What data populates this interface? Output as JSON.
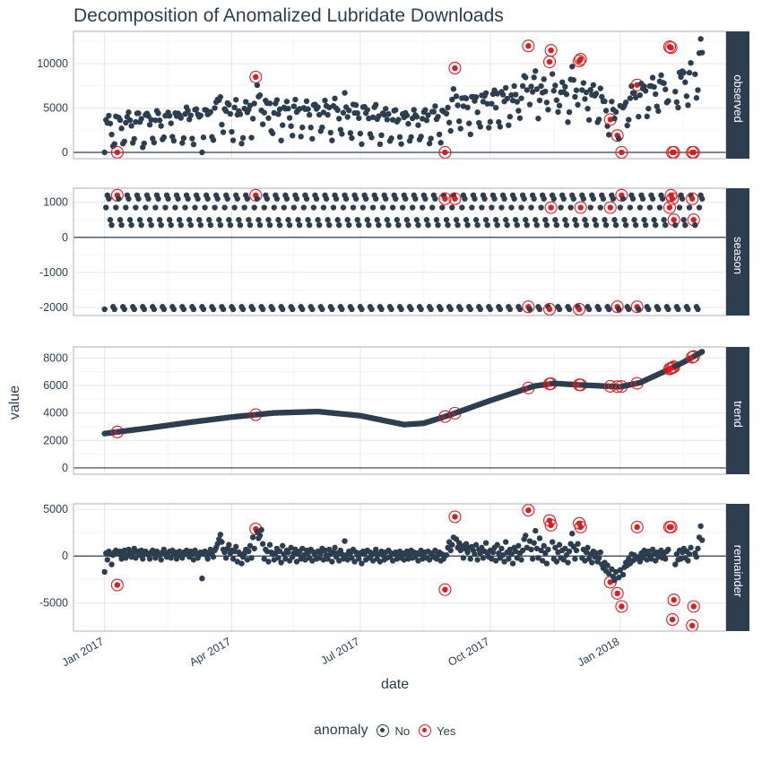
{
  "chart_data": {
    "type": "scatter",
    "title": "Decomposition of Anomalized Lubridate Downloads",
    "xlabel": "date",
    "ylabel": "value",
    "xlim": [
      "2016-12-10",
      "2018-03-17"
    ],
    "xticks": [
      {
        "date": "2017-01-01",
        "label": "Jan 2017"
      },
      {
        "date": "2017-04-01",
        "label": "Apr 2017"
      },
      {
        "date": "2017-07-01",
        "label": "Jul 2017"
      },
      {
        "date": "2017-10-01",
        "label": "Oct 2017"
      },
      {
        "date": "2018-01-01",
        "label": "Jan 2018"
      }
    ],
    "grid": true,
    "legend": {
      "title": "anomaly",
      "position": "bottom",
      "entries": [
        {
          "label": "No",
          "color": "#2c3e50"
        },
        {
          "label": "Yes",
          "color": "#e31a1c"
        }
      ]
    },
    "colors": {
      "normal": "#2c3e50",
      "anomaly": "#e31a1c",
      "strip": "#2c3e50"
    },
    "panels": [
      {
        "name": "observed",
        "ylim": [
          -710,
          13640
        ],
        "yticks": [
          0,
          5000,
          10000
        ]
      },
      {
        "name": "season",
        "ylim": [
          -2230,
          1400
        ],
        "yticks": [
          -2000,
          -1000,
          0,
          1000
        ]
      },
      {
        "name": "trend",
        "ylim": [
          -460,
          8800
        ],
        "yticks": [
          0,
          2000,
          4000,
          6000,
          8000
        ]
      },
      {
        "name": "remainder",
        "ylim": [
          -8040,
          5590
        ],
        "yticks": [
          -5000,
          0,
          5000
        ]
      }
    ],
    "season_by_weekday": {
      "Sun": -2050,
      "Mon": 850,
      "Tue": 1200,
      "Wed": 1100,
      "Thu": 500,
      "Fri": 350,
      "Sat": -1980
    },
    "trend_knots": [
      [
        "2017-01-01",
        2500
      ],
      [
        "2017-02-01",
        2900
      ],
      [
        "2017-03-01",
        3300
      ],
      [
        "2017-04-01",
        3700
      ],
      [
        "2017-05-01",
        4000
      ],
      [
        "2017-06-01",
        4100
      ],
      [
        "2017-07-01",
        3800
      ],
      [
        "2017-08-01",
        3150
      ],
      [
        "2017-08-15",
        3250
      ],
      [
        "2017-09-01",
        3800
      ],
      [
        "2017-10-01",
        4900
      ],
      [
        "2017-11-01",
        5950
      ],
      [
        "2017-11-15",
        6150
      ],
      [
        "2017-12-01",
        6050
      ],
      [
        "2018-01-01",
        5900
      ],
      [
        "2018-01-15",
        6200
      ],
      [
        "2018-02-01",
        7000
      ],
      [
        "2018-02-15",
        7700
      ],
      [
        "2018-02-28",
        8450
      ]
    ],
    "remainder_daily": {
      "2017-01": [
        -1700,
        300,
        -400,
        500,
        200,
        -900,
        100,
        400,
        600,
        -3100,
        200,
        500,
        -300,
        300,
        600,
        -200,
        100,
        700,
        400,
        -100,
        300,
        800,
        -200,
        400,
        500,
        100,
        600,
        -300,
        200,
        500,
        300
      ],
      "2017-02": [
        100,
        -300,
        400,
        600,
        200,
        -200,
        500,
        300,
        100,
        -400,
        400,
        700,
        200,
        -100,
        300,
        500,
        -200,
        600,
        200,
        400,
        -300,
        100,
        500,
        300,
        -200,
        400,
        200,
        600
      ],
      "2017-03": [
        300,
        -100,
        500,
        200,
        -400,
        600,
        300,
        -200,
        100,
        400,
        -2400,
        300,
        500,
        100,
        -300,
        400,
        700,
        200,
        -100,
        600,
        900,
        1300,
        1800,
        2300,
        1500,
        700,
        400,
        -200,
        800,
        1200,
        300
      ],
      "2017-04": [
        600,
        -300,
        500,
        1000,
        -600,
        400,
        200,
        -800,
        -100,
        300,
        700,
        -400,
        500,
        1100,
        -200,
        2000,
        800,
        2900,
        2600,
        1900,
        2200,
        2800,
        1300,
        -300,
        700,
        500,
        -600,
        1200,
        400,
        200
      ],
      "2017-05": [
        -400,
        300,
        800,
        -200,
        500,
        -700,
        1100,
        200,
        -300,
        600,
        400,
        -500,
        900,
        -100,
        300,
        700,
        -600,
        200,
        500,
        -300,
        800,
        100,
        -400,
        600,
        300,
        -200,
        700,
        -500,
        400,
        100,
        -300
      ],
      "2017-06": [
        500,
        -200,
        300,
        800,
        -400,
        600,
        100,
        -300,
        700,
        200,
        -600,
        400,
        900,
        -100,
        300,
        -500,
        600,
        200,
        -300,
        1600,
        100,
        -400,
        500,
        300,
        -200,
        700,
        -600,
        400,
        100,
        -300
      ],
      "2017-07": [
        300,
        -800,
        500,
        200,
        -400,
        600,
        -200,
        400,
        100,
        -500,
        300,
        700,
        -300,
        200,
        -600,
        500,
        100,
        -400,
        400,
        -200,
        600,
        -100,
        300,
        -500,
        200,
        400,
        -300,
        100,
        500,
        -200,
        300
      ],
      "2017-08": [
        -400,
        200,
        500,
        -300,
        100,
        600,
        -200,
        400,
        -100,
        300,
        -500,
        200,
        600,
        -300,
        100,
        400,
        -200,
        500,
        -400,
        200,
        300,
        -100,
        600,
        -300,
        100,
        400,
        -500,
        200,
        -300,
        -3600,
        100
      ],
      "2017-09": [
        900,
        1500,
        600,
        1200,
        2000,
        4200,
        1800,
        900,
        1400,
        600,
        1100,
        -200,
        800,
        1300,
        400,
        900,
        -300,
        1000,
        600,
        200,
        1200,
        -400,
        700,
        300,
        900,
        -200,
        500,
        1400,
        300,
        -100
      ],
      "2017-10": [
        600,
        -300,
        400,
        900,
        -500,
        1200,
        300,
        -200,
        800,
        100,
        -600,
        1500,
        400,
        -300,
        700,
        200,
        -800,
        900,
        500,
        -200,
        1100,
        300,
        -400,
        600,
        1800,
        2200,
        900,
        4900,
        1600,
        700,
        -300
      ],
      "2017-11": [
        1400,
        2700,
        800,
        -200,
        1900,
        600,
        -500,
        1100,
        300,
        -800,
        700,
        3800,
        3300,
        1500,
        -300,
        900,
        -600,
        400,
        1200,
        -200,
        600,
        -400,
        800,
        100,
        -700,
        500,
        1300,
        2400,
        1000,
        -300
      ],
      "2017-12": [
        600,
        1300,
        3500,
        3100,
        -200,
        700,
        -500,
        400,
        900,
        -300,
        200,
        -700,
        500,
        -100,
        300,
        -600,
        -200,
        400,
        -900,
        -1300,
        -700,
        -1600,
        -1000,
        -1900,
        -2800,
        -1400,
        -2200,
        -2600,
        -1700,
        -4000,
        -2300
      ],
      "2018-01": [
        -1500,
        -5400,
        -2000,
        -1200,
        -700,
        -1000,
        -300,
        -800,
        200,
        -500,
        100,
        -300,
        3100,
        -100,
        -600,
        300,
        -200,
        600,
        200,
        -400,
        500,
        100,
        -300,
        700,
        200,
        -500,
        400,
        -100,
        300,
        600,
        -200
      ],
      "2018-02": [
        300,
        -300,
        500,
        700,
        3100,
        3100,
        -6800,
        -4700,
        -900,
        200,
        -400,
        600,
        -300,
        400,
        800,
        -200,
        500,
        -500,
        200,
        900,
        -7450,
        -5400,
        300,
        -100,
        800,
        2000,
        3200,
        1700
      ]
    },
    "anomalies": [
      {
        "date": "2017-01-10",
        "observed": 0
      },
      {
        "date": "2017-04-18",
        "observed": 8500
      },
      {
        "date": "2017-08-30",
        "observed": 0
      },
      {
        "date": "2017-09-06",
        "observed": 9500
      },
      {
        "date": "2017-10-28",
        "observed": 12000
      },
      {
        "date": "2017-11-12",
        "observed": 10200
      },
      {
        "date": "2017-11-13",
        "observed": 11500
      },
      {
        "date": "2017-12-03",
        "observed": 10300
      },
      {
        "date": "2017-12-04",
        "observed": 10500
      },
      {
        "date": "2017-12-25",
        "observed": 3700
      },
      {
        "date": "2017-12-30",
        "observed": 1900
      },
      {
        "date": "2018-01-02",
        "observed": 0
      },
      {
        "date": "2018-01-13",
        "observed": 7600
      },
      {
        "date": "2018-02-05",
        "observed": 11900
      },
      {
        "date": "2018-02-06",
        "observed": 11800
      },
      {
        "date": "2018-02-07",
        "observed": 0
      },
      {
        "date": "2018-02-08",
        "observed": 0
      },
      {
        "date": "2018-02-21",
        "observed": 0
      },
      {
        "date": "2018-02-22",
        "observed": 0
      }
    ]
  }
}
